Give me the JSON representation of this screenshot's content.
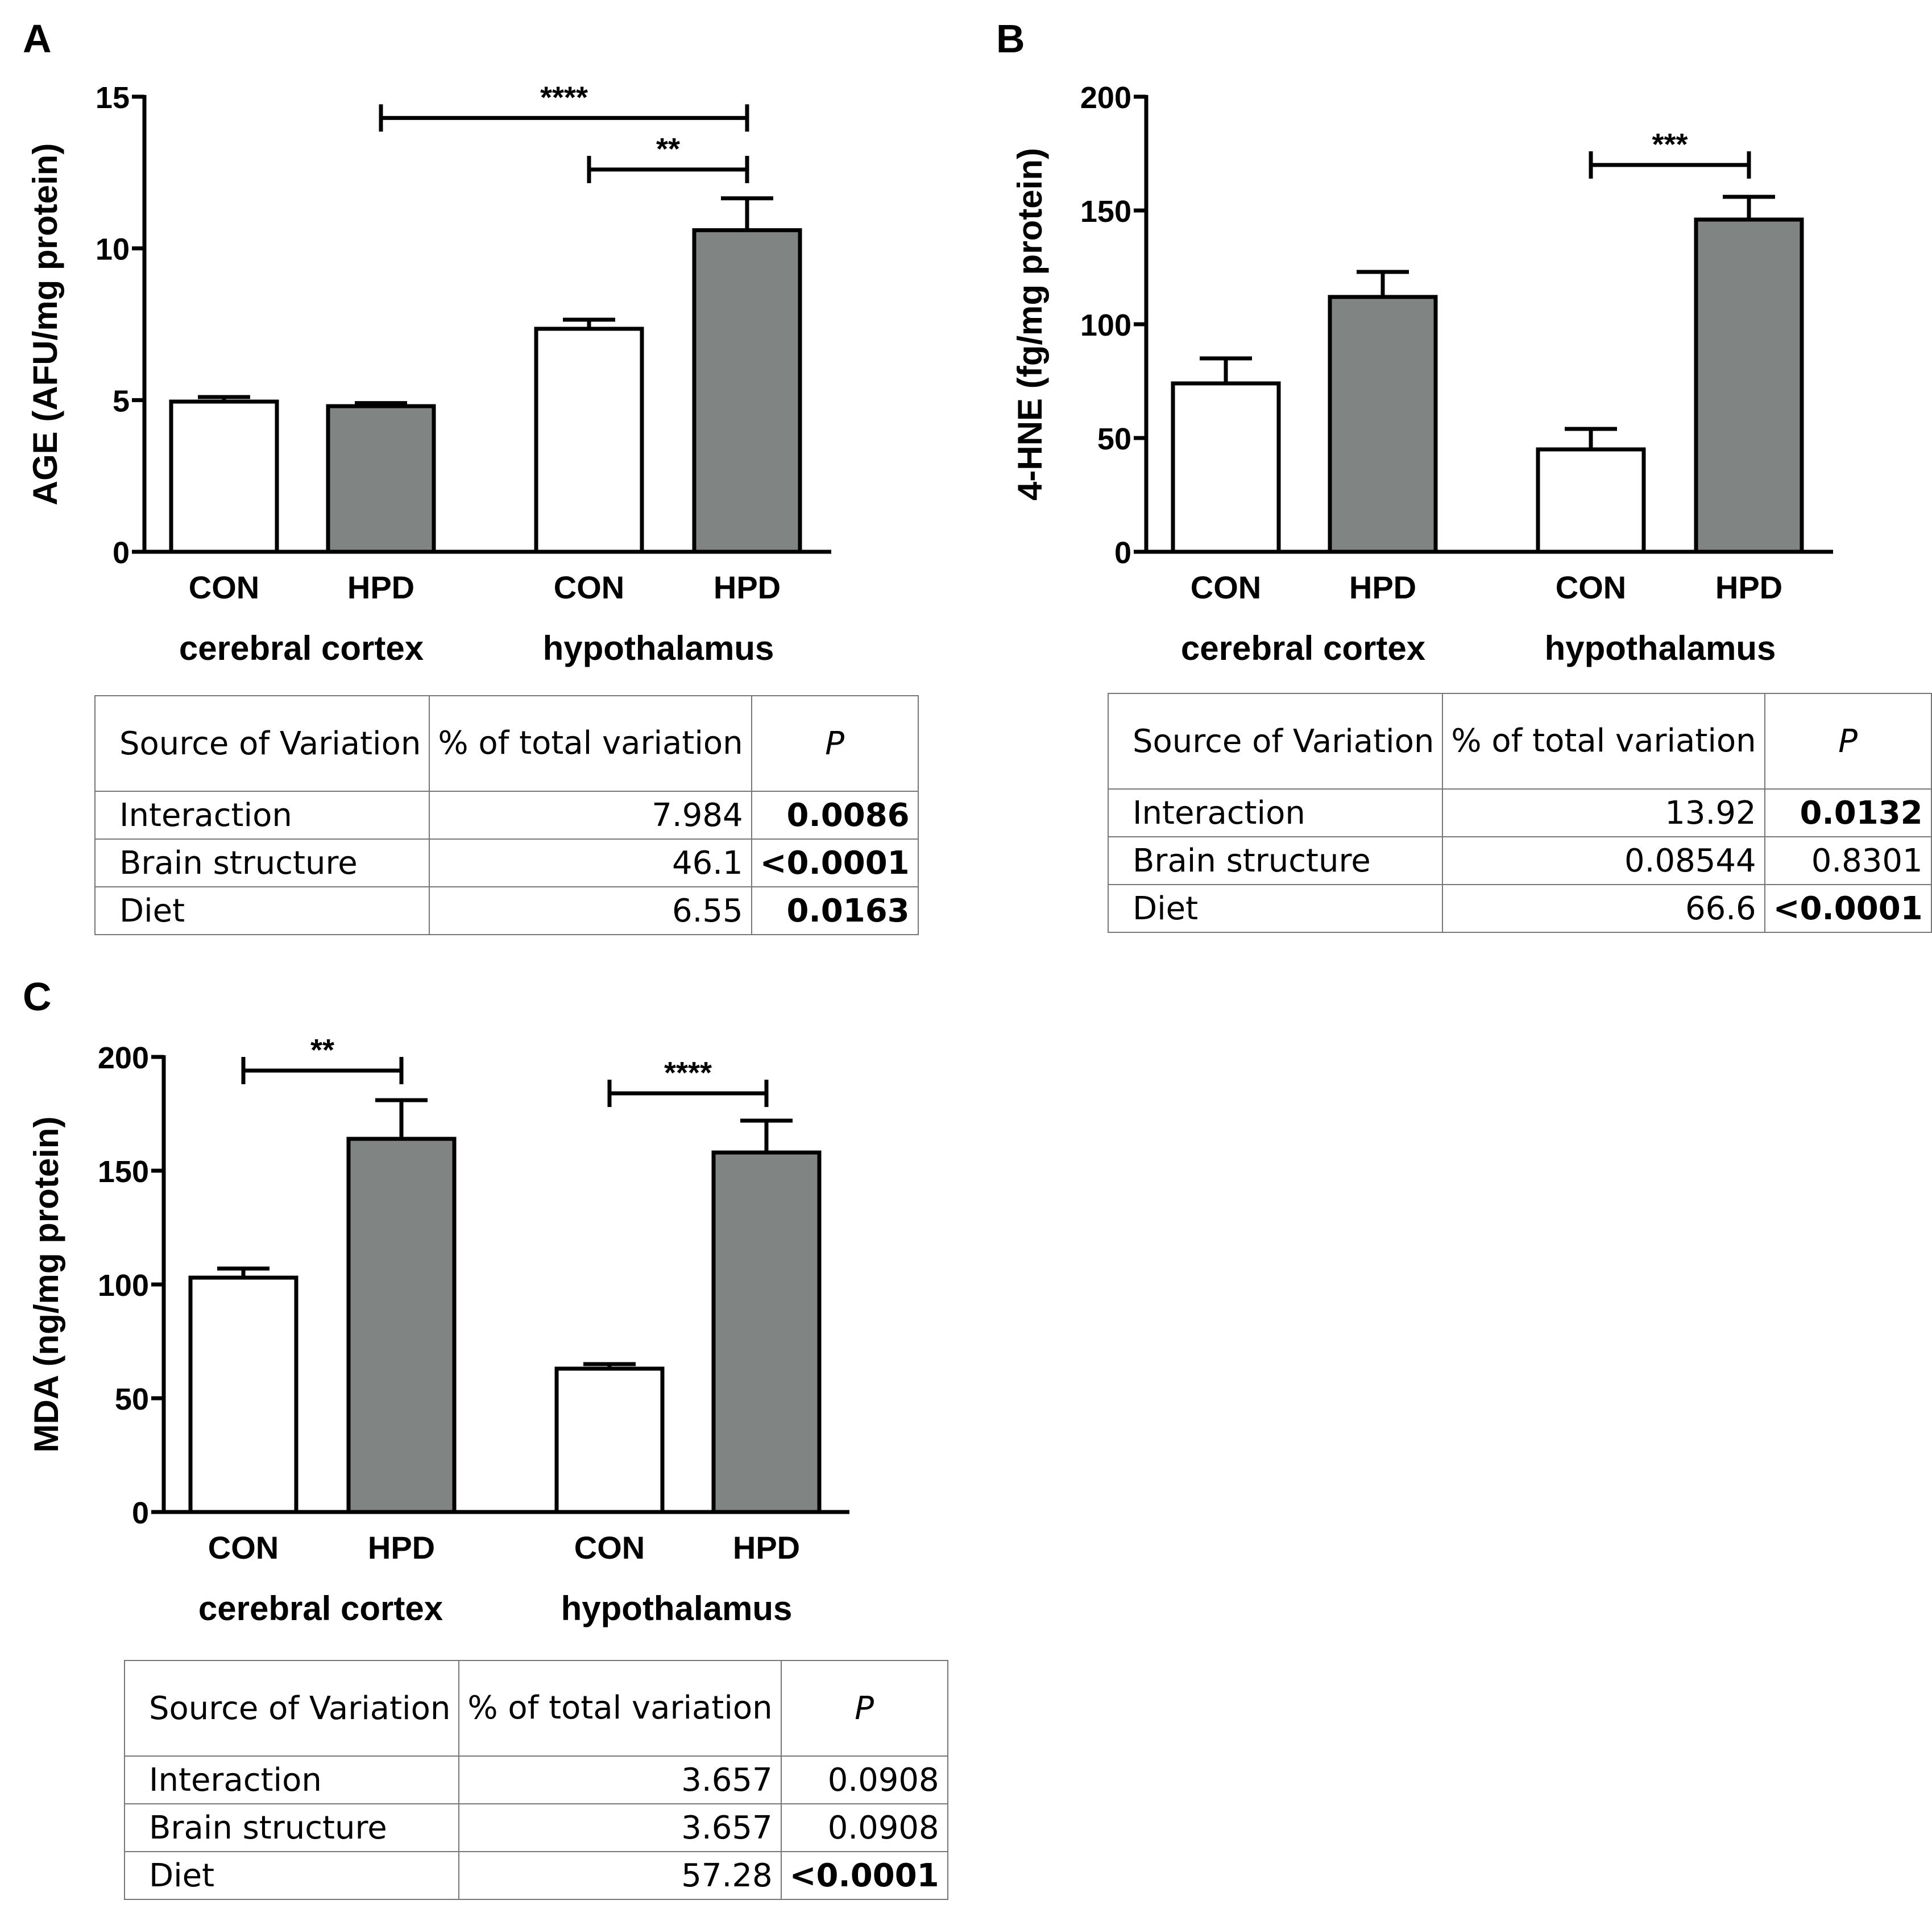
{
  "chart_data": [
    {
      "panel": "A",
      "type": "bar",
      "ylabel": "AGE (AFU/mg protein)",
      "ylim": [
        0,
        15
      ],
      "yticks": [
        0,
        5,
        10,
        15
      ],
      "groups": [
        "cerebral cortex",
        "hypothalamus"
      ],
      "categories": [
        "CON",
        "HPD",
        "CON",
        "HPD"
      ],
      "values": [
        4.95,
        4.8,
        7.35,
        10.6
      ],
      "errors": [
        0.15,
        0.1,
        0.3,
        1.05
      ],
      "fill": [
        "#ffffff",
        "#808584",
        "#ffffff",
        "#808584"
      ],
      "significance": [
        {
          "from": 1,
          "to": 3,
          "label": "****",
          "y": 14.3
        },
        {
          "from": 2,
          "to": 3,
          "label": "**",
          "y": 12.6
        }
      ],
      "table": {
        "headers": [
          "Source of Variation",
          "% of total variation",
          "P"
        ],
        "rows": [
          {
            "source": "Interaction",
            "pct": "7.984",
            "p": "0.0086",
            "p_bold": true
          },
          {
            "source": "Brain structure",
            "pct": "46.1",
            "p": "<0.0001",
            "p_bold": true
          },
          {
            "source": "Diet",
            "pct": "6.55",
            "p": "0.0163",
            "p_bold": true
          }
        ]
      }
    },
    {
      "panel": "B",
      "type": "bar",
      "ylabel": "4-HNE (fg/mg protein)",
      "ylim": [
        0,
        200
      ],
      "yticks": [
        0,
        50,
        100,
        150,
        200
      ],
      "groups": [
        "cerebral cortex",
        "hypothalamus"
      ],
      "categories": [
        "CON",
        "HPD",
        "CON",
        "HPD"
      ],
      "values": [
        74,
        112,
        45,
        146
      ],
      "errors": [
        11,
        11,
        9,
        10
      ],
      "fill": [
        "#ffffff",
        "#808584",
        "#ffffff",
        "#808584"
      ],
      "significance": [
        {
          "from": 2,
          "to": 3,
          "label": "***",
          "y": 170
        }
      ],
      "table": {
        "headers": [
          "Source of Variation",
          "% of total variation",
          "P"
        ],
        "rows": [
          {
            "source": "Interaction",
            "pct": "13.92",
            "p": "0.0132",
            "p_bold": true
          },
          {
            "source": "Brain structure",
            "pct": "0.08544",
            "p": "0.8301",
            "p_bold": false
          },
          {
            "source": "Diet",
            "pct": "66.6",
            "p": "<0.0001",
            "p_bold": true
          }
        ]
      }
    },
    {
      "panel": "C",
      "type": "bar",
      "ylabel": "MDA (ng/mg protein)",
      "ylim": [
        0,
        200
      ],
      "yticks": [
        0,
        50,
        100,
        150,
        200
      ],
      "groups": [
        "cerebral cortex",
        "hypothalamus"
      ],
      "categories": [
        "CON",
        "HPD",
        "CON",
        "HPD"
      ],
      "values": [
        103,
        164,
        63,
        158
      ],
      "errors": [
        4,
        17,
        2,
        14
      ],
      "fill": [
        "#ffffff",
        "#808584",
        "#ffffff",
        "#808584"
      ],
      "significance": [
        {
          "from": 0,
          "to": 1,
          "label": "**",
          "y": 194
        },
        {
          "from": 2,
          "to": 3,
          "label": "****",
          "y": 184
        }
      ],
      "table": {
        "headers": [
          "Source of Variation",
          "% of total variation",
          "P"
        ],
        "rows": [
          {
            "source": "Interaction",
            "pct": "3.657",
            "p": "0.0908",
            "p_bold": false
          },
          {
            "source": "Brain structure",
            "pct": "3.657",
            "p": "0.0908",
            "p_bold": false
          },
          {
            "source": "Diet",
            "pct": "57.28",
            "p": "<0.0001",
            "p_bold": true
          }
        ]
      }
    }
  ]
}
